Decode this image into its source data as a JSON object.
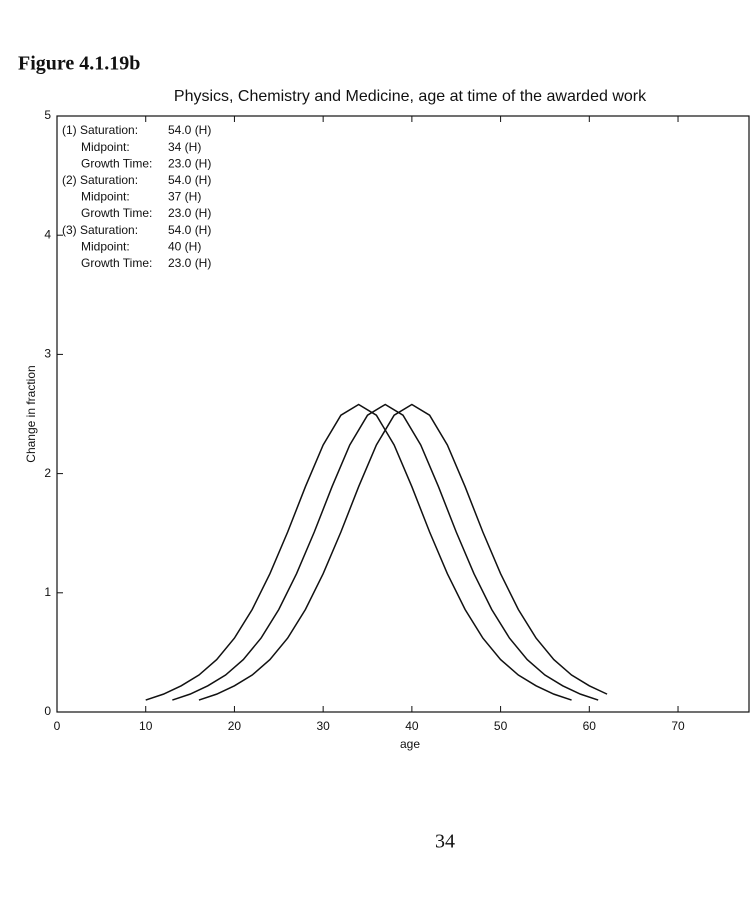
{
  "figure_label": "Figure 4.1.19b",
  "page_number": "34",
  "chart_data": {
    "type": "line",
    "title": "Physics, Chemistry and Medicine,  age at time of the awarded work",
    "x_label": "age",
    "y_label": "Change in fraction",
    "xlim": [
      0,
      78
    ],
    "xticks": [
      0,
      10,
      20,
      30,
      40,
      50,
      60,
      70
    ],
    "ylim": [
      0,
      5
    ],
    "yticks": [
      0,
      1,
      2,
      3,
      4,
      5
    ],
    "annotations": [
      {
        "label": "(1) Saturation:",
        "value": "54.0 (H)"
      },
      {
        "label": "Midpoint:",
        "value": "34 (H)"
      },
      {
        "label": "Growth Time:",
        "value": "23.0 (H)"
      },
      {
        "label": "(2) Saturation:",
        "value": "54.0 (H)"
      },
      {
        "label": "Midpoint:",
        "value": "37 (H)"
      },
      {
        "label": "Growth Time:",
        "value": "23.0 (H)"
      },
      {
        "label": "(3) Saturation:",
        "value": "54.0 (H)"
      },
      {
        "label": "Midpoint:",
        "value": "40 (H)"
      },
      {
        "label": "Growth Time:",
        "value": "23.0 (H)"
      }
    ],
    "series": [
      {
        "color": "#111111",
        "x": [
          10,
          12,
          14,
          16,
          18,
          20,
          22,
          24,
          26,
          28,
          30,
          32,
          34,
          36,
          38,
          40,
          42,
          44,
          46,
          48,
          50,
          52,
          54,
          56,
          58
        ],
        "values": [
          0.1,
          0.15,
          0.22,
          0.31,
          0.44,
          0.62,
          0.86,
          1.16,
          1.51,
          1.89,
          2.24,
          2.49,
          2.58,
          2.49,
          2.24,
          1.89,
          1.51,
          1.16,
          0.86,
          0.62,
          0.44,
          0.31,
          0.22,
          0.15,
          0.1
        ]
      },
      {
        "color": "#111111",
        "x": [
          13,
          15,
          17,
          19,
          21,
          23,
          25,
          27,
          29,
          31,
          33,
          35,
          37,
          39,
          41,
          43,
          45,
          47,
          49,
          51,
          53,
          55,
          57,
          59,
          61
        ],
        "values": [
          0.1,
          0.15,
          0.22,
          0.31,
          0.44,
          0.62,
          0.86,
          1.16,
          1.51,
          1.89,
          2.24,
          2.49,
          2.58,
          2.49,
          2.24,
          1.89,
          1.51,
          1.16,
          0.86,
          0.62,
          0.44,
          0.31,
          0.22,
          0.15,
          0.1
        ]
      },
      {
        "color": "#111111",
        "x": [
          16,
          18,
          20,
          22,
          24,
          26,
          28,
          30,
          32,
          34,
          36,
          38,
          40,
          42,
          44,
          46,
          48,
          50,
          52,
          54,
          56,
          58,
          60,
          62
        ],
        "values": [
          0.1,
          0.15,
          0.22,
          0.31,
          0.44,
          0.62,
          0.86,
          1.16,
          1.51,
          1.89,
          2.24,
          2.49,
          2.58,
          2.49,
          2.24,
          1.89,
          1.51,
          1.16,
          0.86,
          0.62,
          0.44,
          0.31,
          0.22,
          0.15
        ]
      }
    ]
  }
}
